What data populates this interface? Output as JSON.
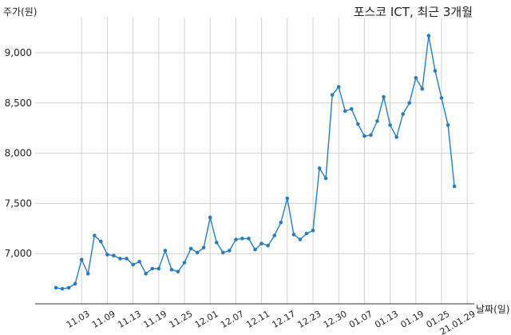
{
  "chart_data": {
    "type": "line",
    "title": "포스코 ICT, 최근 3개월",
    "ylabel": "주가(원)",
    "xlabel": "날짜(일)",
    "ylim": [
      6500,
      9350
    ],
    "yticks": [
      7000,
      7500,
      8000,
      8500,
      9000
    ],
    "ytick_labels": [
      "7,000",
      "7,500",
      "8,000",
      "8,500",
      "9,000"
    ],
    "grid": true,
    "series_color": "#2b7bb9",
    "xtick_labels": [
      {
        "i": 4,
        "label": "11.03"
      },
      {
        "i": 8,
        "label": "11.09"
      },
      {
        "i": 12,
        "label": "11.13"
      },
      {
        "i": 16,
        "label": "11.19"
      },
      {
        "i": 20,
        "label": "11.25"
      },
      {
        "i": 24,
        "label": "12.01"
      },
      {
        "i": 28,
        "label": "12.07"
      },
      {
        "i": 32,
        "label": "12.11"
      },
      {
        "i": 36,
        "label": "12.17"
      },
      {
        "i": 40,
        "label": "12.23"
      },
      {
        "i": 44,
        "label": "12.30"
      },
      {
        "i": 48,
        "label": "01.07"
      },
      {
        "i": 52,
        "label": "01.13"
      },
      {
        "i": 56,
        "label": "01.19"
      },
      {
        "i": 60,
        "label": "01.25"
      },
      {
        "i": 64,
        "label": "21.01.29"
      }
    ],
    "values": [
      6660,
      6650,
      6660,
      6700,
      6940,
      6800,
      7180,
      7120,
      6990,
      6980,
      6950,
      6950,
      6890,
      6920,
      6800,
      6850,
      6850,
      7030,
      6840,
      6820,
      6910,
      7050,
      7010,
      7060,
      7360,
      7110,
      7010,
      7030,
      7140,
      7150,
      7150,
      7040,
      7100,
      7080,
      7180,
      7310,
      7550,
      7190,
      7140,
      7200,
      7230,
      7850,
      7750,
      8580,
      8660,
      8420,
      8440,
      8290,
      8170,
      8180,
      8320,
      8560,
      8280,
      8160,
      8390,
      8500,
      8750,
      8640,
      9170,
      8820,
      8550,
      8280,
      7670
    ]
  }
}
